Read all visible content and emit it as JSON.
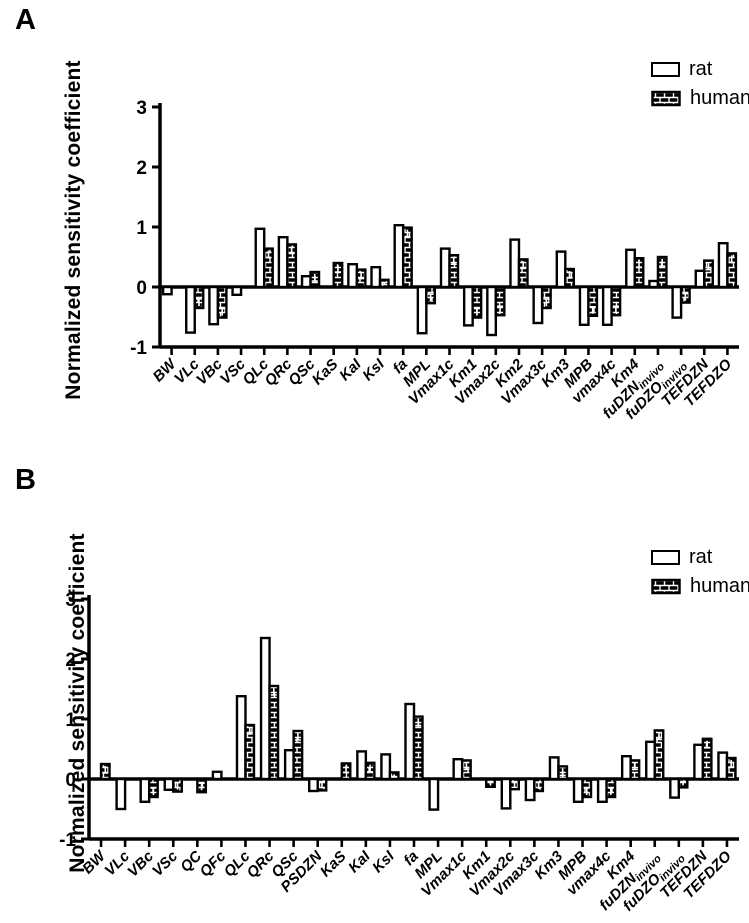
{
  "figure": {
    "panels": [
      {
        "label": "A",
        "ylabel": "Normalized sensitivity coefficient",
        "legend": [
          "rat",
          "human"
        ]
      },
      {
        "label": "B",
        "ylabel": "Normalized sensitivity coefficient",
        "legend": [
          "rat",
          "human"
        ]
      }
    ],
    "colors": {
      "outline": "#000000",
      "rat_fill": "#ffffff",
      "human_fill": "black-brick-pattern",
      "background": "#ffffff"
    }
  },
  "chart_data": [
    {
      "type": "bar",
      "panel": "A",
      "title": "",
      "xlabel": "",
      "ylabel": "Normalized sensitivity coefficient",
      "ylim": [
        -1,
        3.2
      ],
      "yticks": [
        -1,
        0,
        1,
        2,
        3
      ],
      "grid": false,
      "legend_position": "top-right",
      "legend": [
        "rat",
        "human"
      ],
      "categories": [
        "BW",
        "VLc",
        "VBc",
        "VSc",
        "QLc",
        "QRc",
        "QSc",
        "KaS",
        "KaI",
        "KsI",
        "fa",
        "MPL",
        "Vmax1c",
        "Km1",
        "Vmax2c",
        "Km2",
        "Vmax3c",
        "Km3",
        "MPB",
        "vmax4c",
        "Km4",
        "fuDZN_invivo",
        "fuDZO_invivo",
        "TEFDZN",
        "TEFDZO"
      ],
      "series": [
        {
          "name": "rat",
          "values": [
            -0.12,
            -0.76,
            -0.62,
            -0.13,
            0.97,
            0.83,
            0.18,
            0,
            0.38,
            0.33,
            1.03,
            -0.77,
            0.64,
            -0.64,
            -0.8,
            0.79,
            -0.6,
            0.59,
            -0.63,
            -0.63,
            0.62,
            0.1,
            -0.51,
            0.27,
            0.73
          ]
        },
        {
          "name": "human",
          "values": [
            0,
            -0.35,
            -0.51,
            0,
            0.64,
            0.71,
            0.25,
            0.4,
            0.29,
            0.12,
            0.99,
            -0.27,
            0.53,
            -0.51,
            -0.47,
            0.46,
            -0.35,
            0.3,
            -0.48,
            -0.47,
            0.48,
            0.5,
            -0.26,
            0.44,
            0.56
          ],
          "error": 0.04
        }
      ]
    },
    {
      "type": "bar",
      "panel": "B",
      "title": "",
      "xlabel": "",
      "ylabel": "Normalized sensitivity coefficient",
      "ylim": [
        -1,
        3.2
      ],
      "yticks": [
        -1,
        0,
        1,
        2,
        3
      ],
      "grid": false,
      "legend_position": "top-right",
      "legend": [
        "rat",
        "human"
      ],
      "categories": [
        "BW",
        "VLc",
        "VBc",
        "VSc",
        "QC",
        "QFc",
        "QLc",
        "QRc",
        "QSc",
        "PSDZN",
        "KaS",
        "KaI",
        "KsI",
        "fa",
        "MPL",
        "Vmax1c",
        "Km1",
        "Vmax2c",
        "Vmax3c",
        "Km3",
        "MPB",
        "vmax4c",
        "Km4",
        "fuDZN_invivo",
        "fuDZO_invivo",
        "TEFDZN",
        "TEFDZO"
      ],
      "series": [
        {
          "name": "rat",
          "values": [
            0,
            -0.5,
            -0.38,
            -0.18,
            0,
            0.12,
            1.38,
            2.35,
            0.48,
            -0.2,
            0,
            0.46,
            0.41,
            1.25,
            -0.51,
            0.33,
            0,
            -0.49,
            -0.35,
            0.36,
            -0.38,
            -0.38,
            0.38,
            0.62,
            -0.31,
            0.57,
            0.44
          ]
        },
        {
          "name": "human",
          "values": [
            0.25,
            0,
            -0.3,
            -0.21,
            -0.22,
            0,
            0.9,
            1.55,
            0.8,
            -0.19,
            0.26,
            0.27,
            0.11,
            1.04,
            0,
            0.31,
            -0.13,
            -0.17,
            -0.2,
            0.21,
            -0.3,
            -0.3,
            0.31,
            0.81,
            -0.14,
            0.67,
            0.35
          ],
          "error": 0.04
        }
      ]
    }
  ]
}
